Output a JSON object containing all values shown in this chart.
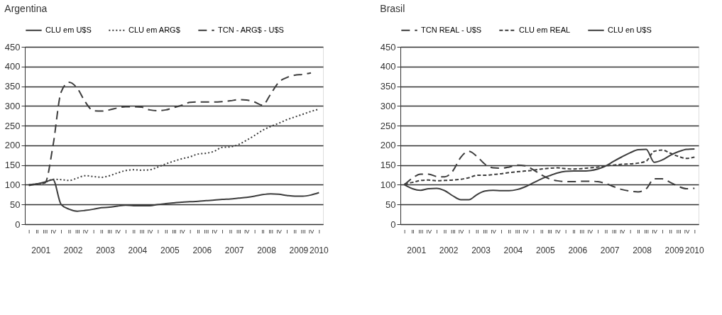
{
  "chart_data": [
    {
      "type": "line",
      "title": "Argentina",
      "categories": [
        "I",
        "II",
        "III",
        "IV",
        "I",
        "II",
        "III",
        "IV",
        "I",
        "II",
        "III",
        "IV",
        "I",
        "II",
        "III",
        "IV",
        "I",
        "II",
        "III",
        "IV",
        "I",
        "II",
        "III",
        "IV",
        "I",
        "II",
        "III",
        "IV",
        "I",
        "II",
        "III",
        "IV",
        "I",
        "II",
        "III",
        "IV",
        "I"
      ],
      "annotations": [
        "2001",
        "2002",
        "2003",
        "2004",
        "2005",
        "2006",
        "2007",
        "2008",
        "2009",
        "2010"
      ],
      "ylim": [
        0,
        450
      ],
      "yticks": [
        0,
        50,
        100,
        150,
        200,
        250,
        300,
        350,
        400,
        450
      ],
      "grid": "y",
      "legend": "top",
      "marker": "none",
      "series": [
        {
          "name": "CLU em U$S",
          "color": "#3c3c3c",
          "line_style": "solid",
          "values": [
            98,
            102,
            107,
            113,
            50,
            38,
            33,
            35,
            38,
            42,
            43,
            46,
            48,
            47,
            47,
            47,
            50,
            52,
            54,
            56,
            57,
            58,
            60,
            61,
            63,
            64,
            66,
            68,
            71,
            75,
            77,
            76,
            73,
            71,
            71,
            74,
            80
          ]
        },
        {
          "name": "CLU em ARG$",
          "color": "#3c3c3c",
          "line_style": "dotted",
          "values": [
            100,
            102,
            106,
            114,
            113,
            111,
            117,
            123,
            121,
            119,
            123,
            130,
            136,
            138,
            137,
            138,
            145,
            153,
            160,
            166,
            171,
            178,
            180,
            185,
            195,
            196,
            202,
            213,
            225,
            238,
            248,
            256,
            265,
            272,
            279,
            286,
            292
          ]
        },
        {
          "name": "TCN - ARG$ - U$S",
          "color": "#3c3c3c",
          "line_style": "dashed",
          "values": [
            100,
            102,
            105,
            200,
            335,
            360,
            345,
            310,
            288,
            287,
            290,
            295,
            298,
            298,
            297,
            290,
            288,
            290,
            296,
            302,
            309,
            310,
            310,
            310,
            311,
            313,
            316,
            315,
            310,
            302,
            330,
            360,
            372,
            378,
            380,
            384,
            null
          ]
        }
      ]
    },
    {
      "type": "line",
      "title": "Brasil",
      "categories": [
        "I",
        "II",
        "III",
        "IV",
        "I",
        "II",
        "III",
        "IV",
        "I",
        "II",
        "III",
        "IV",
        "I",
        "II",
        "III",
        "IV",
        "I",
        "II",
        "III",
        "IV",
        "I",
        "II",
        "III",
        "IV",
        "I",
        "II",
        "III",
        "IV",
        "I",
        "II",
        "III",
        "IV",
        "I",
        "II",
        "III",
        "IV",
        "I"
      ],
      "annotations": [
        "2001",
        "2002",
        "2003",
        "2004",
        "2005",
        "2006",
        "2007",
        "2008",
        "2009",
        "2010"
      ],
      "ylim": [
        0,
        450
      ],
      "yticks": [
        0,
        50,
        100,
        150,
        200,
        250,
        300,
        350,
        400,
        450
      ],
      "grid": "y",
      "legend": "top",
      "marker": "none",
      "series": [
        {
          "name": "TCN REAL - U$S",
          "color": "#3c3c3c",
          "line_style": "dashed",
          "values": [
            100,
            117,
            127,
            127,
            121,
            120,
            135,
            170,
            185,
            172,
            152,
            143,
            142,
            145,
            150,
            148,
            138,
            125,
            115,
            110,
            108,
            108,
            109,
            109,
            108,
            103,
            95,
            88,
            84,
            82,
            90,
            115,
            115,
            106,
            96,
            90,
            91
          ]
        },
        {
          "name": "CLU em REAL",
          "color": "#3c3c3c",
          "line_style": "dashed",
          "values": [
            102,
            106,
            111,
            112,
            110,
            111,
            112,
            114,
            118,
            124,
            124,
            126,
            128,
            131,
            133,
            135,
            137,
            140,
            142,
            143,
            141,
            140,
            141,
            143,
            145,
            148,
            150,
            152,
            153,
            155,
            160,
            185,
            188,
            180,
            172,
            167,
            170
          ]
        },
        {
          "name": "CLU en U$S",
          "color": "#3c3c3c",
          "line_style": "solid",
          "values": [
            100,
            90,
            86,
            90,
            91,
            85,
            72,
            62,
            62,
            75,
            84,
            86,
            85,
            85,
            88,
            95,
            105,
            115,
            123,
            130,
            134,
            135,
            135,
            136,
            140,
            148,
            160,
            171,
            181,
            189,
            190,
            157,
            163,
            175,
            184,
            190,
            191
          ]
        }
      ]
    }
  ]
}
